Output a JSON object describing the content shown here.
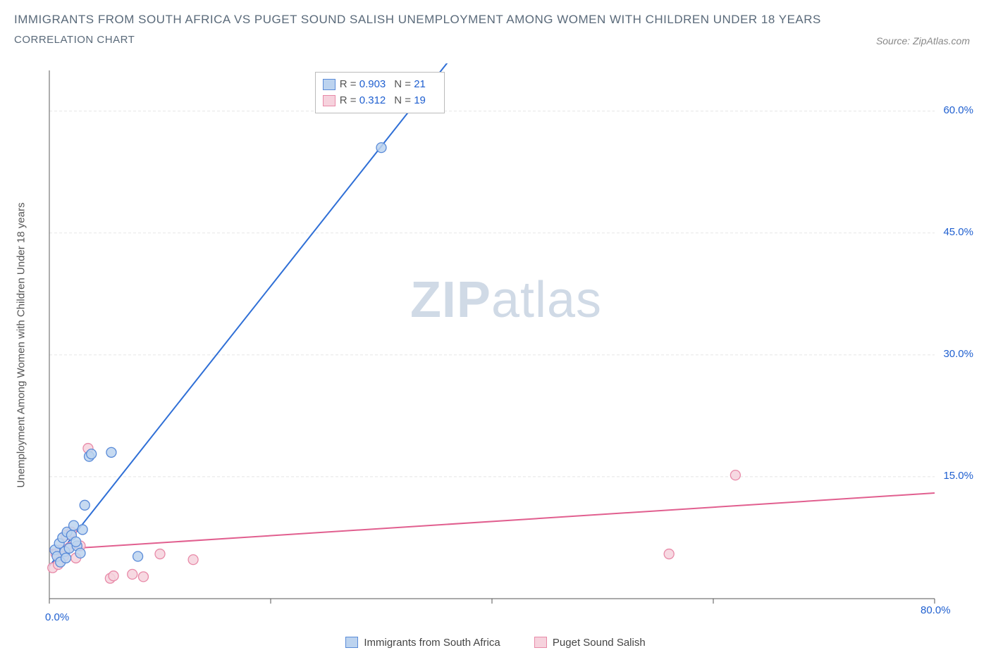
{
  "title_line1": "IMMIGRANTS FROM SOUTH AFRICA VS PUGET SOUND SALISH UNEMPLOYMENT AMONG WOMEN WITH CHILDREN UNDER 18 YEARS",
  "title_line2": "CORRELATION CHART",
  "source_text": "Source: ZipAtlas.com",
  "y_axis_label": "Unemployment Among Women with Children Under 18 years",
  "watermark_bold": "ZIP",
  "watermark_light": "atlas",
  "chart": {
    "type": "scatter-with-regression",
    "background_color": "#ffffff",
    "axis_color": "#777777",
    "grid_color": "#e5e5e5",
    "tick_color": "#555555",
    "x_min": 0.0,
    "x_max": 80.0,
    "y_min": 0.0,
    "y_max": 65.0,
    "x_ticks": [
      0,
      20,
      40,
      60,
      80
    ],
    "x_tick_labels_shown": [
      "0.0%",
      "80.0%"
    ],
    "y_ticks": [
      15.0,
      30.0,
      45.0,
      60.0
    ],
    "y_tick_labels": [
      "15.0%",
      "30.0%",
      "45.0%",
      "60.0%"
    ],
    "tick_label_color": "#2060d0",
    "tick_label_fontsize": 15,
    "marker_radius": 7,
    "marker_stroke_width": 1.3,
    "regression_line_width": 2,
    "series": [
      {
        "key": "south_africa",
        "label": "Immigrants from South Africa",
        "fill": "#bcd3ef",
        "stroke": "#5a8bd8",
        "line_color": "#2f6fd6",
        "R": 0.903,
        "N": 21,
        "points": [
          [
            0.5,
            6.0
          ],
          [
            0.7,
            5.2
          ],
          [
            0.9,
            6.8
          ],
          [
            1.0,
            4.5
          ],
          [
            1.2,
            7.5
          ],
          [
            1.4,
            5.8
          ],
          [
            1.6,
            8.2
          ],
          [
            1.8,
            6.2
          ],
          [
            2.0,
            7.8
          ],
          [
            2.2,
            9.0
          ],
          [
            2.5,
            6.5
          ],
          [
            2.8,
            5.6
          ],
          [
            3.0,
            8.5
          ],
          [
            3.2,
            11.5
          ],
          [
            3.6,
            17.5
          ],
          [
            3.8,
            17.8
          ],
          [
            5.6,
            18.0
          ],
          [
            8.0,
            5.2
          ],
          [
            1.5,
            5.0
          ],
          [
            2.4,
            7.0
          ],
          [
            30.0,
            55.5
          ]
        ],
        "regression_start": [
          0.0,
          4.0
        ],
        "regression_end": [
          36.0,
          66.0
        ]
      },
      {
        "key": "puget_sound",
        "label": "Puget Sound Salish",
        "fill": "#f6d2dd",
        "stroke": "#e88aa8",
        "line_color": "#e15f8f",
        "R": 0.312,
        "N": 19,
        "points": [
          [
            0.3,
            3.8
          ],
          [
            0.6,
            5.5
          ],
          [
            0.8,
            4.2
          ],
          [
            1.0,
            6.0
          ],
          [
            1.3,
            5.2
          ],
          [
            1.5,
            7.8
          ],
          [
            1.8,
            6.3
          ],
          [
            2.0,
            8.2
          ],
          [
            2.4,
            5.0
          ],
          [
            2.8,
            6.5
          ],
          [
            3.5,
            18.5
          ],
          [
            5.5,
            2.5
          ],
          [
            5.8,
            2.8
          ],
          [
            7.5,
            3.0
          ],
          [
            8.5,
            2.7
          ],
          [
            10.0,
            5.5
          ],
          [
            13.0,
            4.8
          ],
          [
            56.0,
            5.5
          ],
          [
            62.0,
            15.2
          ]
        ],
        "regression_start": [
          0.0,
          6.0
        ],
        "regression_end": [
          80.0,
          13.0
        ]
      }
    ]
  },
  "legend_stats": {
    "R_label": "R =",
    "N_label": "N ="
  }
}
